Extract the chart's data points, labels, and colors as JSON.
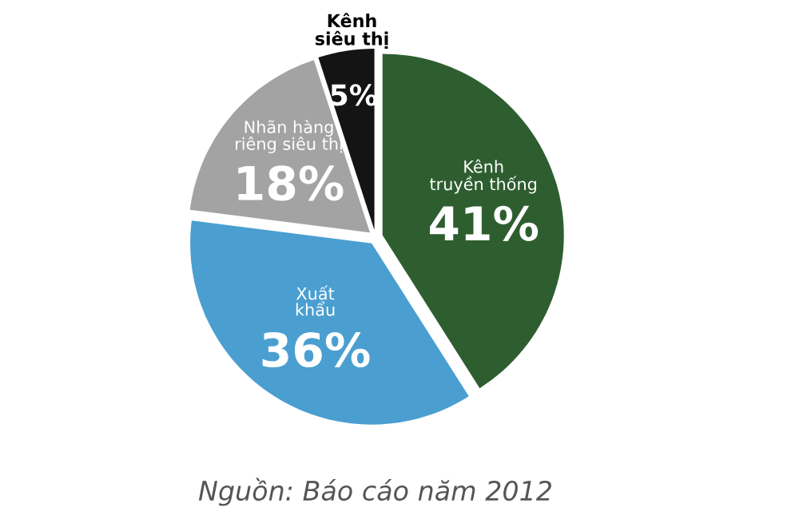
{
  "chart_data": {
    "type": "pie",
    "categories": [
      "Kênh truyền thống",
      "Xuất khẩu",
      "Nhãn hàng riêng siêu thị",
      "Kênh siêu thị"
    ],
    "values": [
      41,
      36,
      18,
      5
    ],
    "colors": [
      "#2e5e30",
      "#4a9fd0",
      "#a3a3a3",
      "#141414"
    ],
    "value_labels": [
      "41%",
      "36%",
      "18%",
      "5%"
    ],
    "annotations": [
      "Nguồn: Báo cáo năm 2012"
    ],
    "legend": false
  }
}
